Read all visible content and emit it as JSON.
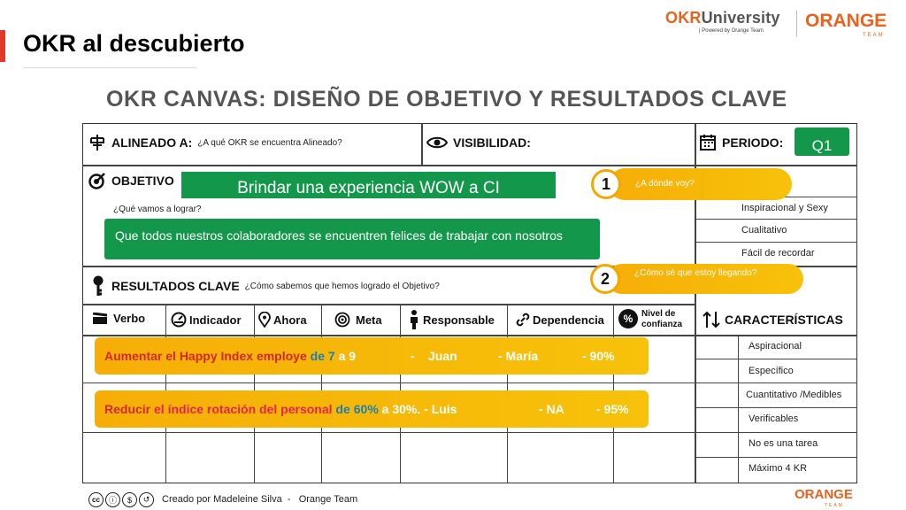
{
  "header": {
    "title": "OKR al descubierto",
    "brand_okr": "OKR",
    "brand_university": "University",
    "brand_powered": "| Powered by Orange Team",
    "brand_orange": "ORANGE",
    "brand_team": "TEAM"
  },
  "canvas": {
    "title": "OKR CANVAS: DISEÑO DE OBJETIVO Y RESULTADOS CLAVE",
    "alineado_label": "ALINEADO A:",
    "alineado_q": "¿A qué OKR se encuentra Alineado?",
    "visibilidad_label": "VISIBILIDAD:",
    "periodo_label": "PERIODO:",
    "periodo_value": "Q1",
    "objetivo_label": "OBJETIVO",
    "objetivo_value": "Brindar una experiencia WOW a CI",
    "objetivo_q": "¿Qué vamos a lograr?",
    "objetivo_desc": "Que todos nuestros colaboradores se encuentren felices de trabajar con nosotros",
    "callout1_num": "1",
    "callout1_text": "¿A dónde voy?",
    "callout2_num": "2",
    "callout2_text": "¿Cómo sé que estoy llegando?",
    "obj_traits": [
      "Inspiracional y Sexy",
      "Cualitativo",
      "Fácil de recordar"
    ],
    "kr_label": "RESULTADOS CLAVE",
    "kr_q": "¿Cómo sabemos que hemos logrado el Objetivo?",
    "columns": [
      "Verbo",
      "Indicador",
      "Ahora",
      "Meta",
      "Responsable",
      "Dependencia",
      "Nivel de confianza"
    ],
    "characteristics_label": "CARACTERÍSTICAS",
    "kr_traits": [
      "Aspiracional",
      "Específico",
      "Cuantitativo /Medibles",
      "Verificables",
      "No es una tarea",
      "Máximo 4 KR"
    ],
    "kr1": {
      "verbo": "Aumentar",
      "indicador": "el Happy Index employe",
      "de": "de",
      "ahora": "7",
      "a": "a 9",
      "dash1": "-",
      "resp": "Juan",
      "dep": "- María",
      "conf": "- 90%"
    },
    "kr2": {
      "verbo": "Reducir",
      "indicador": "el índice rotación del personal",
      "de": "de",
      "ahora": "60%",
      "a": "a 30%.",
      "resp": "- Luis",
      "dep": "- NA",
      "conf": "- 95%"
    }
  },
  "footer": {
    "credit": "Creado por Madeleine Silva  -   Orange Team",
    "brand": "ORANGE",
    "brand_sub": "TEAM"
  },
  "colors": {
    "green": "#13974a",
    "yellow": "#f6ae07",
    "orange": "#e8631d",
    "red": "#d42828"
  }
}
